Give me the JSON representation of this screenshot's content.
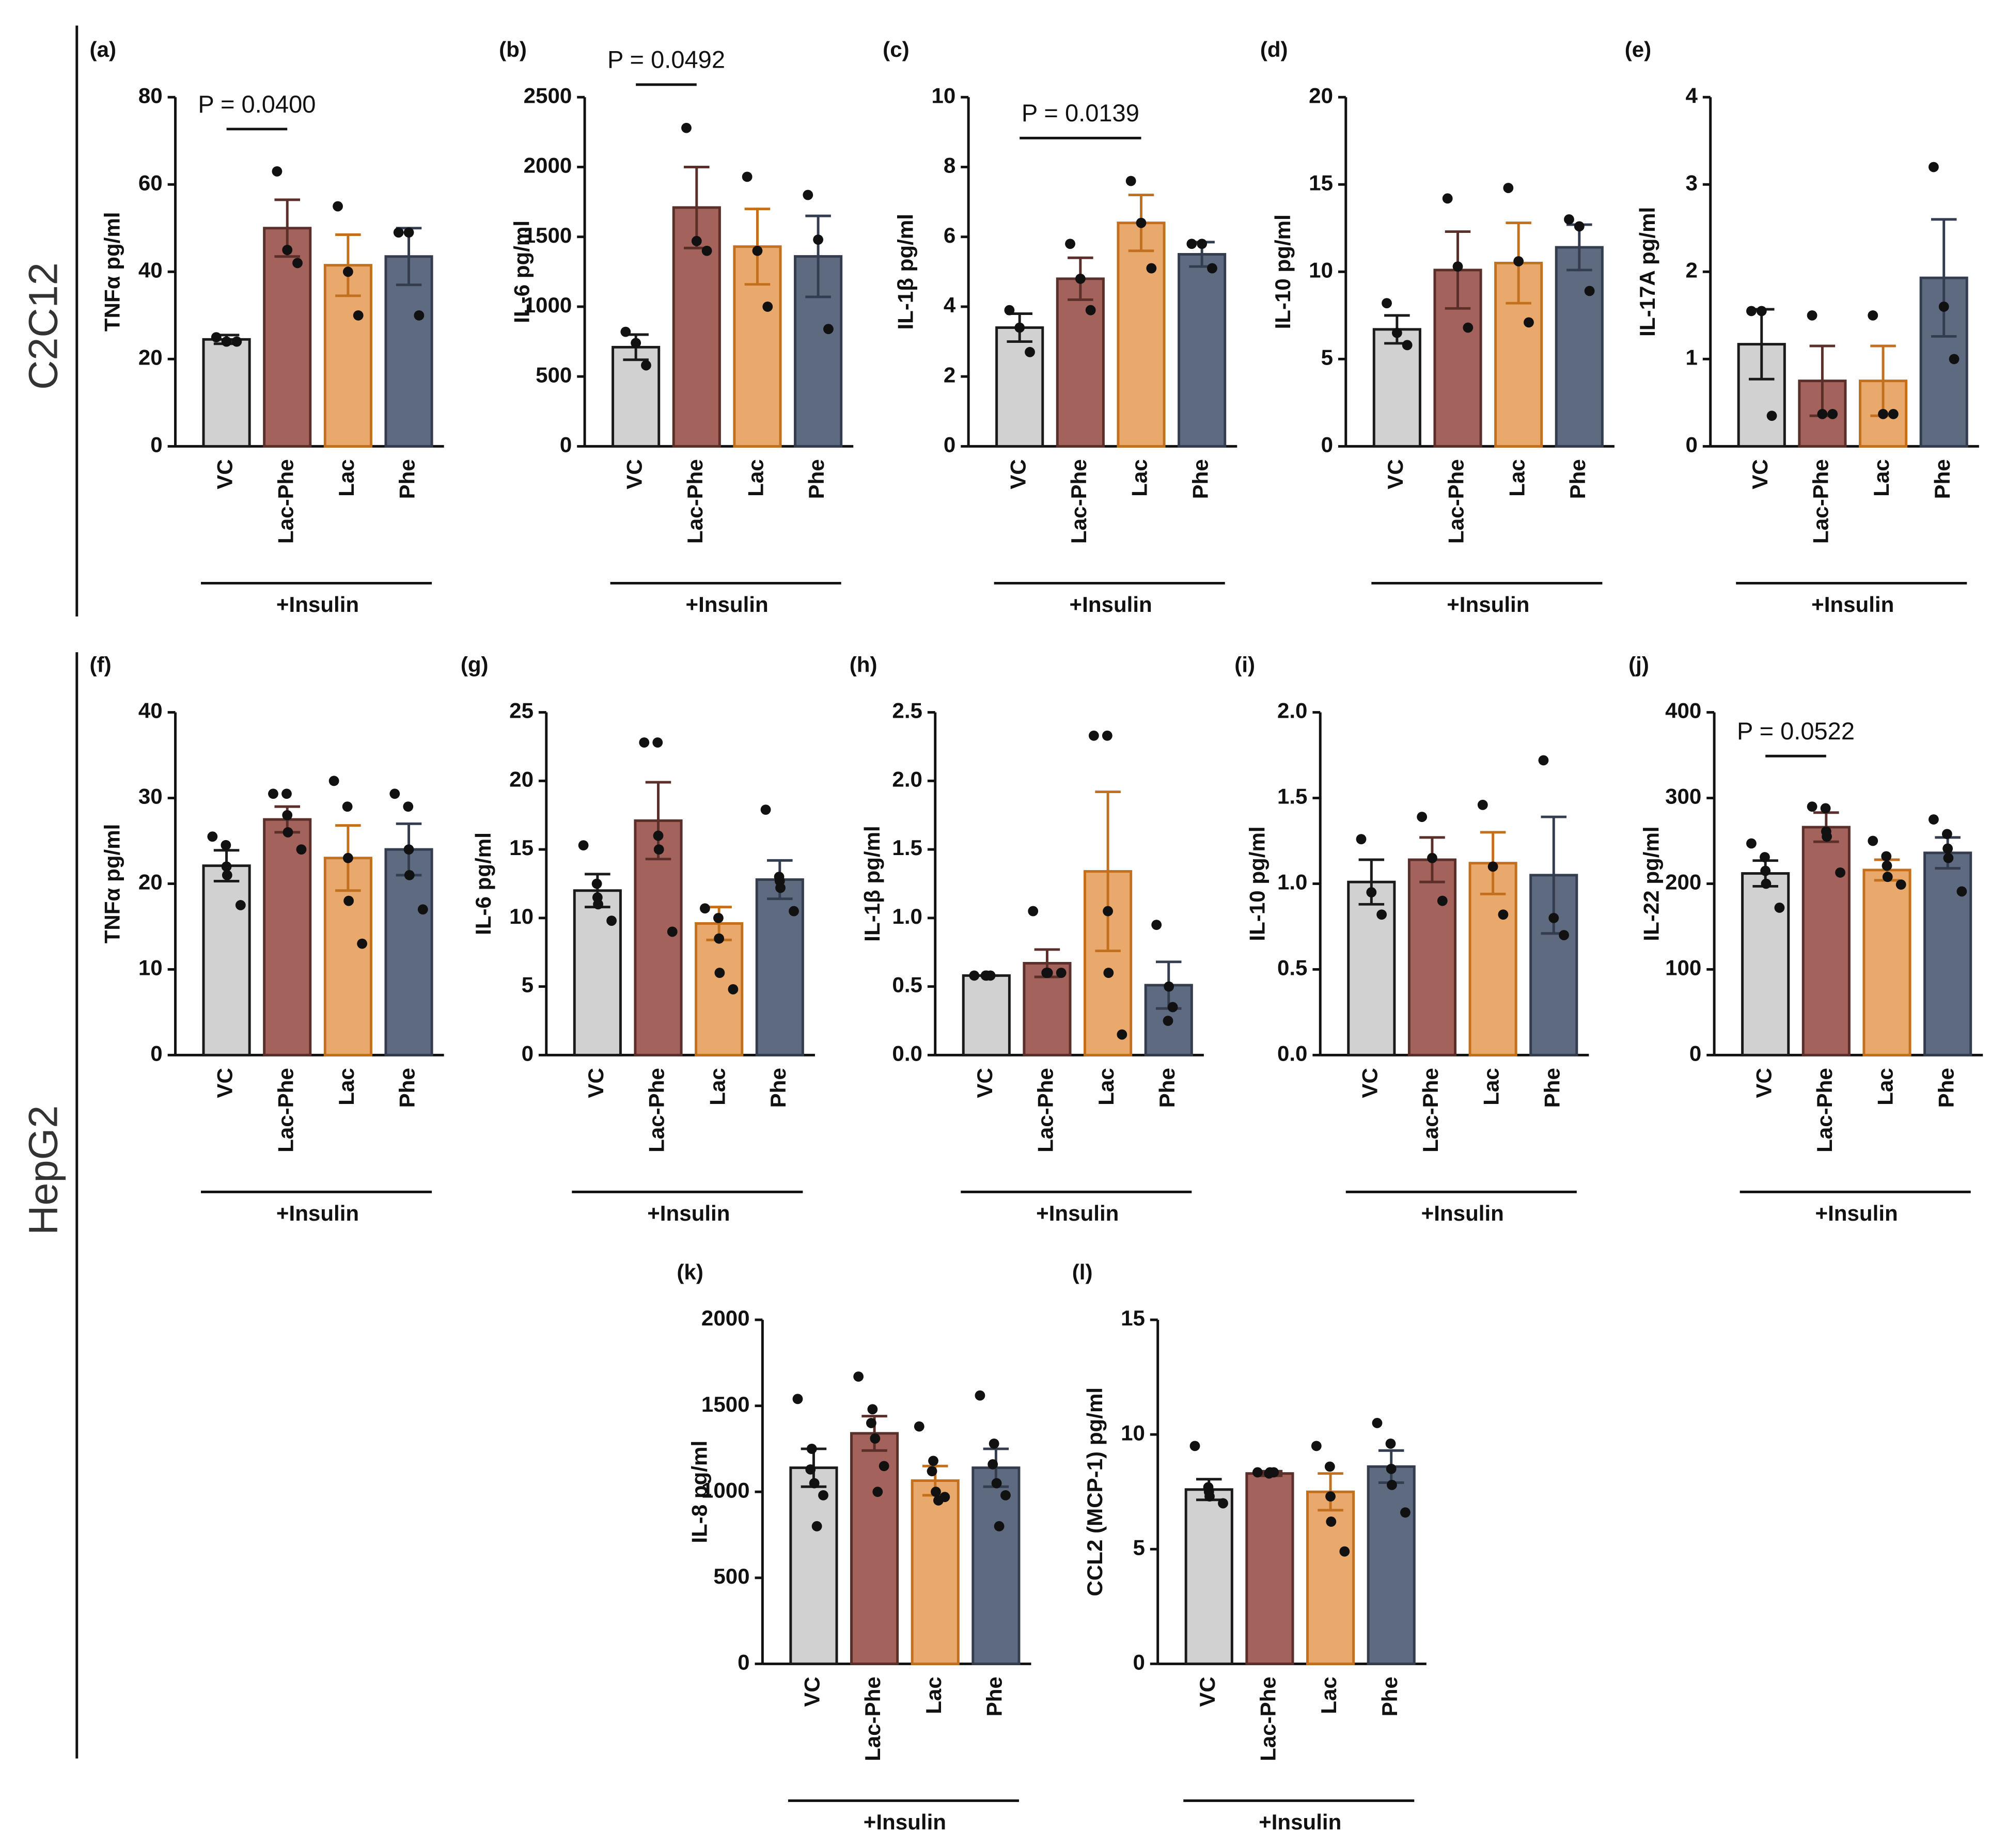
{
  "row_labels": [
    "C2C12",
    "HepG2"
  ],
  "chart_data": [
    {
      "type": "bar",
      "panel": "(a)",
      "ylabel": "TNFα pg/ml",
      "categories": [
        "VC",
        "Lac-Phe",
        "Lac",
        "Phe"
      ],
      "values": [
        24.5,
        50,
        41.5,
        43.5
      ],
      "errors": [
        1,
        6.5,
        7,
        6.5
      ],
      "points": [
        [
          25,
          24,
          24
        ],
        [
          63,
          45,
          42
        ],
        [
          55,
          40,
          30
        ],
        [
          49,
          49,
          30
        ]
      ],
      "ylim": [
        0,
        80
      ],
      "yticks": [
        0,
        20,
        40,
        60,
        80
      ],
      "annotation": {
        "text": "P = 0.0400",
        "from": 0,
        "to": 1,
        "y": 72.7
      },
      "group_label": "+Insulin",
      "colors": [
        "#d1d1d1",
        "#a3625b",
        "#eaa96c",
        "#5e6a80"
      ],
      "edgecolors": [
        "#1a1a1a",
        "#5a2f2a",
        "#c2701e",
        "#333d4f"
      ]
    },
    {
      "type": "bar",
      "panel": "(b)",
      "ylabel": "IL-6 pg/ml",
      "categories": [
        "VC",
        "Lac-Phe",
        "Lac",
        "Phe"
      ],
      "values": [
        710,
        1710,
        1430,
        1360
      ],
      "errors": [
        90,
        290,
        270,
        290
      ],
      "points": [
        [
          820,
          740,
          580
        ],
        [
          2280,
          1470,
          1400
        ],
        [
          1930,
          1400,
          1000
        ],
        [
          1800,
          1480,
          840
        ]
      ],
      "ylim": [
        0,
        2500
      ],
      "yticks": [
        0,
        500,
        1000,
        1500,
        2000,
        2500
      ],
      "annotation": {
        "text": "P = 0.0492",
        "from": 0,
        "to": 1,
        "y": 2590
      },
      "group_label": "+Insulin",
      "colors": [
        "#d1d1d1",
        "#a3625b",
        "#eaa96c",
        "#5e6a80"
      ],
      "edgecolors": [
        "#1a1a1a",
        "#5a2f2a",
        "#c2701e",
        "#333d4f"
      ]
    },
    {
      "type": "bar",
      "panel": "(c)",
      "ylabel": "IL-1β pg/ml",
      "categories": [
        "VC",
        "Lac-Phe",
        "Lac",
        "Phe"
      ],
      "values": [
        3.4,
        4.8,
        6.4,
        5.5
      ],
      "errors": [
        0.4,
        0.6,
        0.8,
        0.35
      ],
      "points": [
        [
          3.9,
          3.4,
          2.7
        ],
        [
          5.8,
          4.8,
          3.9
        ],
        [
          7.6,
          6.4,
          5.1
        ],
        [
          5.8,
          5.8,
          5.1
        ]
      ],
      "ylim": [
        0,
        10
      ],
      "yticks": [
        0,
        2,
        4,
        6,
        8,
        10
      ],
      "annotation": {
        "text": "P = 0.0139",
        "from": 0,
        "to": 2,
        "y": 8.83
      },
      "group_label": "+Insulin",
      "colors": [
        "#d1d1d1",
        "#a3625b",
        "#eaa96c",
        "#5e6a80"
      ],
      "edgecolors": [
        "#1a1a1a",
        "#5a2f2a",
        "#c2701e",
        "#333d4f"
      ]
    },
    {
      "type": "bar",
      "panel": "(d)",
      "ylabel": "IL-10 pg/ml",
      "categories": [
        "VC",
        "Lac-Phe",
        "Lac",
        "Phe"
      ],
      "values": [
        6.7,
        10.1,
        10.5,
        11.4
      ],
      "errors": [
        0.8,
        2.2,
        2.3,
        1.3
      ],
      "points": [
        [
          8.2,
          6.5,
          5.8
        ],
        [
          14.2,
          10.3,
          6.8
        ],
        [
          14.8,
          10.6,
          7.1
        ],
        [
          13,
          12.6,
          8.9
        ]
      ],
      "ylim": [
        0,
        20
      ],
      "yticks": [
        0,
        5,
        10,
        15,
        20
      ],
      "group_label": "+Insulin",
      "colors": [
        "#d1d1d1",
        "#a3625b",
        "#eaa96c",
        "#5e6a80"
      ],
      "edgecolors": [
        "#1a1a1a",
        "#5a2f2a",
        "#c2701e",
        "#333d4f"
      ]
    },
    {
      "type": "bar",
      "panel": "(e)",
      "ylabel": "IL-17A pg/ml",
      "categories": [
        "VC",
        "Lac-Phe",
        "Lac",
        "Phe"
      ],
      "values": [
        1.17,
        0.75,
        0.75,
        1.93
      ],
      "errors": [
        0.4,
        0.4,
        0.4,
        0.67
      ],
      "points": [
        [
          1.55,
          1.55,
          0.35
        ],
        [
          1.5,
          0.37,
          0.37
        ],
        [
          1.5,
          0.37,
          0.37
        ],
        [
          3.2,
          1.6,
          1
        ]
      ],
      "ylim": [
        0,
        4
      ],
      "yticks": [
        0,
        1,
        2,
        3,
        4
      ],
      "group_label": "+Insulin",
      "colors": [
        "#d1d1d1",
        "#a3625b",
        "#eaa96c",
        "#5e6a80"
      ],
      "edgecolors": [
        "#1a1a1a",
        "#5a2f2a",
        "#c2701e",
        "#333d4f"
      ]
    },
    {
      "type": "bar",
      "panel": "(f)",
      "ylabel": "TNFα pg/ml",
      "categories": [
        "VC",
        "Lac-Phe",
        "Lac",
        "Phe"
      ],
      "values": [
        22.1,
        27.5,
        23,
        24
      ],
      "errors": [
        1.8,
        1.5,
        3.8,
        3
      ],
      "points": [
        [
          25.5,
          24.5,
          22,
          21,
          17.5
        ],
        [
          30.5,
          30.5,
          28,
          26,
          24
        ],
        [
          32,
          29,
          23,
          18,
          13
        ],
        [
          30.5,
          29,
          24,
          21,
          17
        ]
      ],
      "ylim": [
        0,
        40
      ],
      "yticks": [
        0,
        10,
        20,
        30,
        40
      ],
      "group_label": "+Insulin",
      "colors": [
        "#d1d1d1",
        "#a3625b",
        "#eaa96c",
        "#5e6a80"
      ],
      "edgecolors": [
        "#1a1a1a",
        "#5a2f2a",
        "#c2701e",
        "#333d4f"
      ]
    },
    {
      "type": "bar",
      "panel": "(g)",
      "ylabel": "IL-6 pg/ml",
      "categories": [
        "VC",
        "Lac-Phe",
        "Lac",
        "Phe"
      ],
      "values": [
        12,
        17.1,
        9.6,
        12.8
      ],
      "errors": [
        1.2,
        2.8,
        1.2,
        1.4
      ],
      "points": [
        [
          15.3,
          12.5,
          11.5,
          11,
          9.8
        ],
        [
          22.8,
          22.8,
          16,
          15,
          9
        ],
        [
          10.7,
          10,
          8.5,
          6,
          4.8
        ],
        [
          17.9,
          13,
          12.7,
          12.2,
          10.5
        ]
      ],
      "ylim": [
        0,
        25
      ],
      "yticks": [
        0,
        5,
        10,
        15,
        20,
        25
      ],
      "group_label": "+Insulin",
      "colors": [
        "#d1d1d1",
        "#a3625b",
        "#eaa96c",
        "#5e6a80"
      ],
      "edgecolors": [
        "#1a1a1a",
        "#5a2f2a",
        "#c2701e",
        "#333d4f"
      ]
    },
    {
      "type": "bar",
      "panel": "(h)",
      "ylabel": "IL-1β pg/ml",
      "categories": [
        "VC",
        "Lac-Phe",
        "Lac",
        "Phe"
      ],
      "values": [
        0.58,
        0.67,
        1.34,
        0.51
      ],
      "errors": [
        0,
        0.1,
        0.58,
        0.17
      ],
      "points": [
        [
          0.58,
          0.58,
          0.58,
          0.58
        ],
        [
          1.05,
          0.6,
          0.6,
          0.6,
          0.6
        ],
        [
          2.33,
          2.33,
          1.05,
          0.6,
          0.15
        ],
        [
          0.95,
          0.5,
          0.35,
          0.25
        ]
      ],
      "ylim": [
        0,
        2.5
      ],
      "yticks": [
        {
          "value": 0,
          "label": "0.0"
        },
        {
          "value": 0.5,
          "label": "0.5"
        },
        {
          "value": 1,
          "label": "1.0"
        },
        {
          "value": 1.5,
          "label": "1.5"
        },
        {
          "value": 2,
          "label": "2.0"
        },
        {
          "value": 2.5,
          "label": "2.5"
        }
      ],
      "group_label": "+Insulin",
      "colors": [
        "#d1d1d1",
        "#a3625b",
        "#eaa96c",
        "#5e6a80"
      ],
      "edgecolors": [
        "#1a1a1a",
        "#5a2f2a",
        "#c2701e",
        "#333d4f"
      ]
    },
    {
      "type": "bar",
      "panel": "(i)",
      "ylabel": "IL-10 pg/ml",
      "categories": [
        "VC",
        "Lac-Phe",
        "Lac",
        "Phe"
      ],
      "values": [
        1.01,
        1.14,
        1.12,
        1.05
      ],
      "errors": [
        0.13,
        0.13,
        0.18,
        0.34
      ],
      "points": [
        [
          1.26,
          0.95,
          0.82
        ],
        [
          1.39,
          1.15,
          0.9
        ],
        [
          1.46,
          1.1,
          0.82
        ],
        [
          1.72,
          0.8,
          0.7
        ]
      ],
      "ylim": [
        0,
        2
      ],
      "yticks": [
        {
          "value": 0,
          "label": "0.0"
        },
        {
          "value": 0.5,
          "label": "0.5"
        },
        {
          "value": 1,
          "label": "1.0"
        },
        {
          "value": 1.5,
          "label": "1.5"
        },
        {
          "value": 2,
          "label": "2.0"
        }
      ],
      "group_label": "+Insulin",
      "colors": [
        "#d1d1d1",
        "#a3625b",
        "#eaa96c",
        "#5e6a80"
      ],
      "edgecolors": [
        "#1a1a1a",
        "#5a2f2a",
        "#c2701e",
        "#333d4f"
      ]
    },
    {
      "type": "bar",
      "panel": "(j)",
      "ylabel": "IL-22 pg/ml",
      "categories": [
        "VC",
        "Lac-Phe",
        "Lac",
        "Phe"
      ],
      "values": [
        212,
        266,
        216,
        236
      ],
      "errors": [
        15,
        17,
        12,
        18
      ],
      "points": [
        [
          247,
          231,
          215,
          200,
          172
        ],
        [
          290,
          288,
          261,
          255,
          213
        ],
        [
          250,
          232,
          221,
          208,
          199
        ],
        [
          275,
          258,
          241,
          230,
          191
        ]
      ],
      "ylim": [
        0,
        400
      ],
      "yticks": [
        0,
        100,
        200,
        300,
        400
      ],
      "annotation": {
        "text": "P = 0.0522",
        "from": 0,
        "to": 1,
        "y": 349
      },
      "group_label": "+Insulin",
      "colors": [
        "#d1d1d1",
        "#a3625b",
        "#eaa96c",
        "#5e6a80"
      ],
      "edgecolors": [
        "#1a1a1a",
        "#5a2f2a",
        "#c2701e",
        "#333d4f"
      ]
    },
    {
      "type": "bar",
      "panel": "(k)",
      "ylabel": "IL-8 pg/ml",
      "categories": [
        "VC",
        "Lac-Phe",
        "Lac",
        "Phe"
      ],
      "values": [
        1140,
        1340,
        1065,
        1140
      ],
      "errors": [
        110,
        100,
        85,
        110
      ],
      "points": [
        [
          1540,
          1250,
          1130,
          1050,
          980,
          800
        ],
        [
          1670,
          1480,
          1400,
          1310,
          1150,
          1000
        ],
        [
          1380,
          1180,
          1120,
          1000,
          970,
          950
        ],
        [
          1560,
          1280,
          1160,
          1050,
          980,
          800
        ]
      ],
      "ylim": [
        0,
        2000
      ],
      "yticks": [
        0,
        500,
        1000,
        1500,
        2000
      ],
      "group_label": "+Insulin",
      "colors": [
        "#d1d1d1",
        "#a3625b",
        "#eaa96c",
        "#5e6a80"
      ],
      "edgecolors": [
        "#1a1a1a",
        "#5a2f2a",
        "#c2701e",
        "#333d4f"
      ]
    },
    {
      "type": "bar",
      "panel": "(l)",
      "ylabel": "CCL2 (MCP-1) pg/ml",
      "categories": [
        "VC",
        "Lac-Phe",
        "Lac",
        "Phe"
      ],
      "values": [
        7.6,
        8.3,
        7.5,
        8.6
      ],
      "errors": [
        0.45,
        0.1,
        0.8,
        0.7
      ],
      "points": [
        [
          9.5,
          7.7,
          7.5,
          7.3,
          7
        ],
        [
          8.35,
          8.35,
          8.35,
          8.3
        ],
        [
          9.5,
          8.6,
          7.3,
          6.2,
          4.9
        ],
        [
          10.5,
          9.6,
          8.5,
          7.8,
          6.6
        ]
      ],
      "ylim": [
        0,
        15
      ],
      "yticks": [
        0,
        5,
        10,
        15
      ],
      "group_label": "+Insulin",
      "colors": [
        "#d1d1d1",
        "#a3625b",
        "#eaa96c",
        "#5e6a80"
      ],
      "edgecolors": [
        "#1a1a1a",
        "#5a2f2a",
        "#c2701e",
        "#333d4f"
      ]
    }
  ]
}
